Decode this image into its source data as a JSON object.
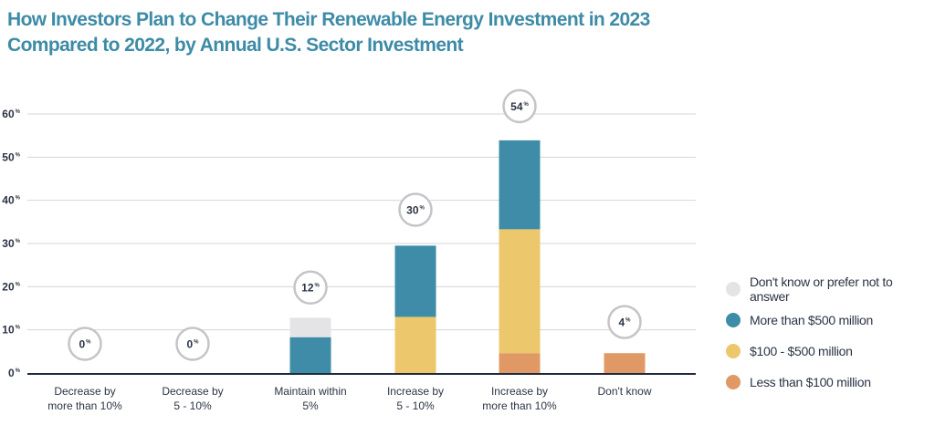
{
  "title_line1": "How Investors Plan to Change Their Renewable Energy Investment in 2023",
  "title_line2": "Compared to 2022, by Annual U.S. Sector Investment",
  "chart_data": {
    "type": "bar",
    "stacked": true,
    "y_ticks": [
      0,
      10,
      20,
      30,
      40,
      50,
      60
    ],
    "y_unit": "%",
    "ylim": [
      0,
      60
    ],
    "grid": true,
    "legend_position": "right",
    "categories": [
      [
        "Decrease by",
        "more than 10%"
      ],
      [
        "Decrease by",
        "5 - 10%"
      ],
      [
        "Maintain within",
        "5%"
      ],
      [
        "Increase by",
        "5 - 10%"
      ],
      [
        "Increase by",
        "more than 10%"
      ],
      [
        "Don't know"
      ]
    ],
    "totals": [
      0,
      0,
      12,
      30,
      54,
      4
    ],
    "series": [
      {
        "name": "Less than $100 million",
        "color": "#e09864",
        "values": [
          0,
          0,
          0,
          0,
          4.6,
          4.6
        ]
      },
      {
        "name": "$100 - $500 million",
        "color": "#ecc76c",
        "values": [
          0,
          0,
          0,
          13,
          28.7,
          0
        ]
      },
      {
        "name": "More than  $500 million",
        "color": "#3e8ca7",
        "values": [
          0,
          0,
          8.3,
          16.5,
          20.6,
          0
        ]
      },
      {
        "name": "Don't know or prefer not to answer",
        "color": "#e4e4e6",
        "values": [
          0,
          0,
          4.5,
          0,
          0,
          0
        ]
      }
    ]
  }
}
